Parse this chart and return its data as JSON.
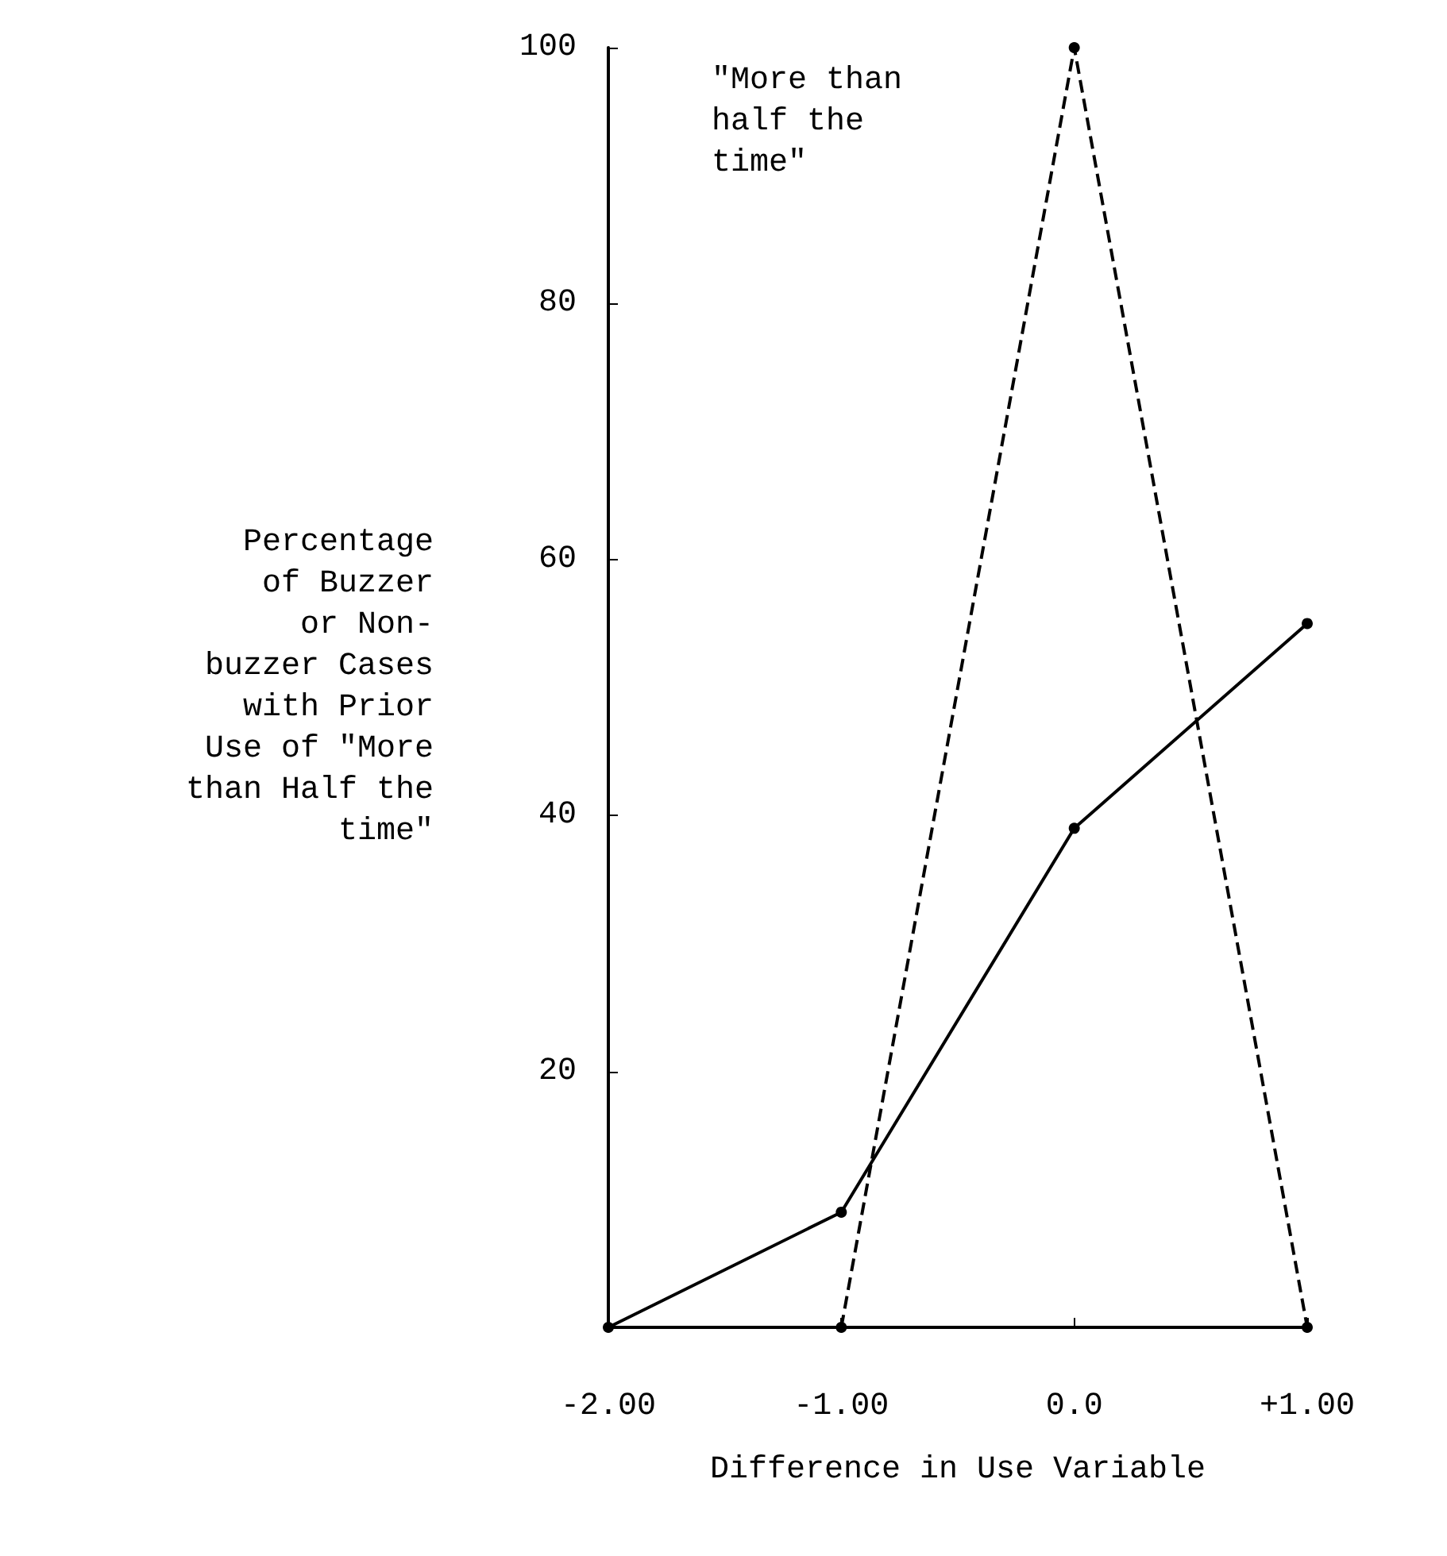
{
  "chart_data": {
    "type": "line",
    "xlabel": "Difference in Use Variable",
    "ylabel": "Percentage\nof Buzzer\nor Non-\nbuzzer Cases\nwith Prior\nUse of \"More\nthan Half the\ntime\"",
    "annotations": [
      "\"More than\nhalf the\ntime\""
    ],
    "series": [
      {
        "color": "#000000",
        "line_style": "solid",
        "marker": "circle",
        "x": [
          -2,
          -1,
          0,
          1
        ],
        "values": [
          0,
          9,
          39,
          55
        ]
      },
      {
        "color": "#000000",
        "line_style": "dashed",
        "marker": "circle",
        "x": [
          -1,
          0,
          1
        ],
        "values": [
          0,
          100,
          0
        ]
      }
    ],
    "xlim": [
      -2,
      1
    ],
    "xticks": [
      {
        "value": -2,
        "label": "-2.00"
      },
      {
        "value": -1,
        "label": "-1.00"
      },
      {
        "value": 0,
        "label": "0.0"
      },
      {
        "value": 1,
        "label": "+1.00"
      }
    ],
    "ylim": [
      0,
      100
    ],
    "yticks": [
      20,
      40,
      60,
      80,
      100
    ],
    "grid": false
  }
}
